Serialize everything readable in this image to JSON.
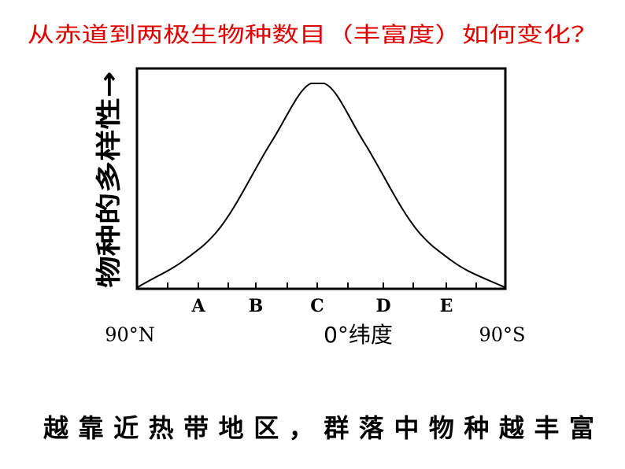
{
  "title": "从赤道到两极生物种数目（丰富度）如何变化？",
  "diagram": {
    "y_axis_label": "物种的多样性→",
    "x_marks": [
      "A",
      "B",
      "C",
      "D",
      "E"
    ],
    "x_left": "90°N",
    "x_center": "0°纬度",
    "x_right": "90°S"
  },
  "caption": "越靠近热带地区，群落中物种越丰富"
}
